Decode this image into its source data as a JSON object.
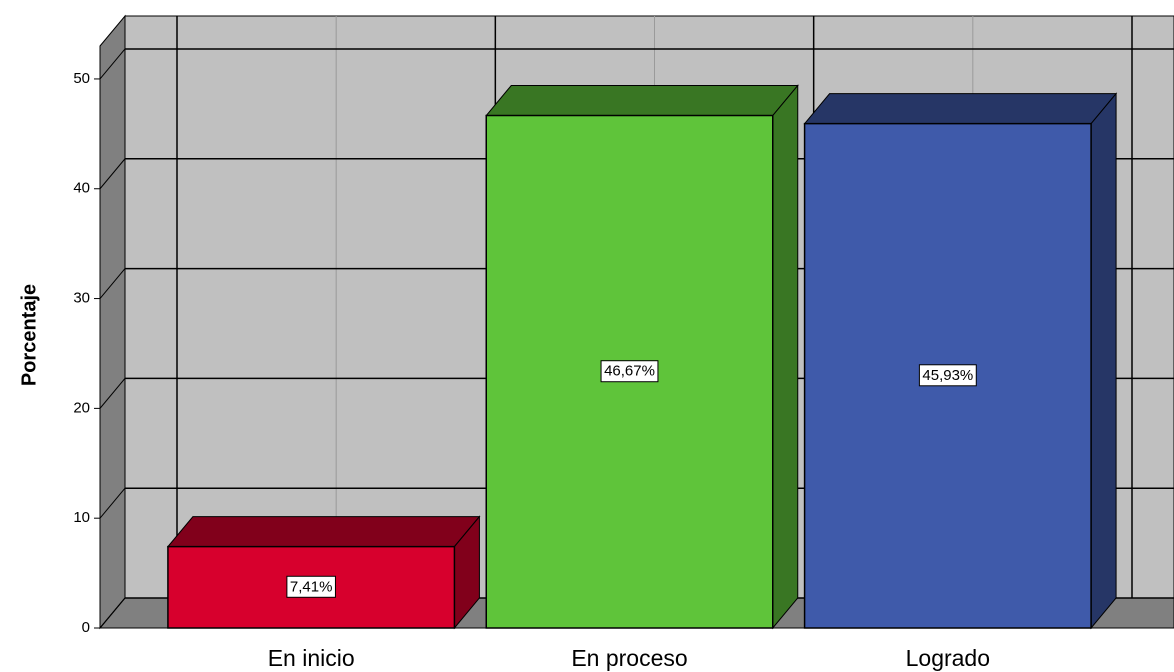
{
  "chart_data": {
    "type": "bar3d",
    "y_label": "Porcentaje",
    "categories": [
      "En inicio",
      "En proceso",
      "Logrado"
    ],
    "values": [
      7.41,
      46.67,
      45.93
    ],
    "value_labels": [
      "7,41%",
      "46,67%",
      "45,93%"
    ],
    "colors": [
      "#d7002d",
      "#5fc43a",
      "#3f5aaa"
    ],
    "ylim": [
      0,
      53
    ],
    "yticks": [
      0,
      10,
      20,
      30,
      40,
      50
    ],
    "grid": true
  }
}
